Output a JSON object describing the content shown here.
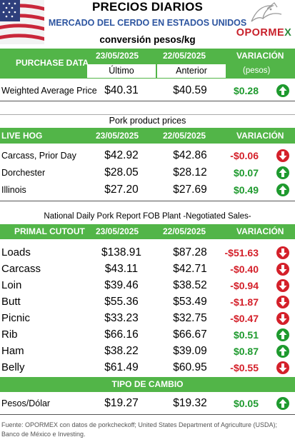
{
  "header": {
    "title": "PRECIOS DIARIOS",
    "subtitle": "MERCADO DEL CERDO EN ESTADOS UNIDOS",
    "logo_text": "OPORMEX",
    "conversion": "conversión pesos/kg"
  },
  "purchase": {
    "section": "PURCHASE DATA",
    "date_current": "23/05/2025",
    "date_previous": "22/05/2025",
    "var_label": "VARIACIÓN",
    "sub_current": "Último",
    "sub_previous": "Anterior",
    "sub_var": "(pesos)",
    "rows": [
      {
        "label": "Weighted Average Price",
        "current": "$40.31",
        "previous": "$40.59",
        "variation": "$0.28",
        "direction": "up"
      }
    ]
  },
  "pork": {
    "section_title": "Pork product prices",
    "section": "LIVE HOG",
    "date_current": "23/05/2025",
    "date_previous": "22/05/2025",
    "var_label": "VARIACIÓN",
    "rows": [
      {
        "label": "Carcass, Prior Day",
        "current": "$42.92",
        "previous": "$42.86",
        "variation": "-$0.06",
        "direction": "down"
      },
      {
        "label": "Dorchester",
        "current": "$28.05",
        "previous": "$28.12",
        "variation": "$0.07",
        "direction": "up"
      },
      {
        "label": "Illinois",
        "current": "$27.20",
        "previous": "$27.69",
        "variation": "$0.49",
        "direction": "up"
      }
    ]
  },
  "cutout": {
    "section_title": "National Daily Pork Report FOB Plant -Negotiated Sales-",
    "section": "PRIMAL CUTOUT",
    "date_current": "23/05/2025",
    "date_previous": "22/05/2025",
    "var_label": "VARIACIÓN",
    "rows": [
      {
        "label": "Loads",
        "current": "$138.91",
        "previous": "$87.28",
        "variation": "-$51.63",
        "direction": "down"
      },
      {
        "label": "Carcass",
        "current": "$43.11",
        "previous": "$42.71",
        "variation": "-$0.40",
        "direction": "down"
      },
      {
        "label": "Loin",
        "current": "$39.46",
        "previous": "$38.52",
        "variation": "-$0.94",
        "direction": "down"
      },
      {
        "label": "Butt",
        "current": "$55.36",
        "previous": "$53.49",
        "variation": "-$1.87",
        "direction": "down"
      },
      {
        "label": "Picnic",
        "current": "$33.23",
        "previous": "$32.75",
        "variation": "-$0.47",
        "direction": "down"
      },
      {
        "label": "Rib",
        "current": "$66.16",
        "previous": "$66.67",
        "variation": "$0.51",
        "direction": "up"
      },
      {
        "label": "Ham",
        "current": "$38.22",
        "previous": "$39.09",
        "variation": "$0.87",
        "direction": "up"
      },
      {
        "label": "Belly",
        "current": "$61.49",
        "previous": "$60.95",
        "variation": "-$0.55",
        "direction": "down"
      }
    ]
  },
  "exchange": {
    "section": "TIPO DE CAMBIO",
    "rows": [
      {
        "label": "Pesos/Dólar",
        "current": "$19.27",
        "previous": "$19.32",
        "variation": "$0.05",
        "direction": "up"
      }
    ]
  },
  "source": "Fuente: OPORMEX con datos de porkcheckoff; United States Department of Agriculture (USDA); Banco de México e Investing.",
  "colors": {
    "green_bar": "#52b548",
    "positive": "#1e9a2e",
    "negative": "#d4202a",
    "title_blue": "#2d55a0"
  }
}
